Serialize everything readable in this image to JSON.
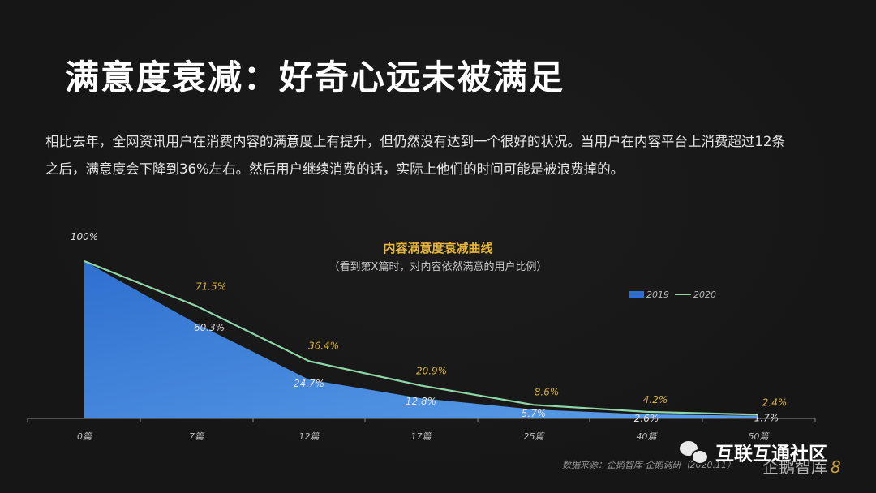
{
  "page": {
    "title": "满意度衰减：好奇心远未被满足",
    "description_line1": "相比去年，全网资讯用户在消费内容的满意度上有提升，但仍然没有达到一个很好的状况。当用户在内容平台上消费超过12条",
    "description_line2": "之后，满意度会下降到36%左右。然后用户继续消费的话，实际上他们的时间可能是被浪费掉的。",
    "source": "数据来源：企鹅智库·企鹅调研（2020.11）",
    "watermark_text": "互联互通社区",
    "brand_text": "企鹅智库",
    "brand_suffix": "8"
  },
  "chart_data": {
    "type": "area",
    "title": "内容满意度衰减曲线",
    "subtitle": "（看到第X篇时，对内容依然满意的用户比例）",
    "categories": [
      "0篇",
      "7篇",
      "12篇",
      "17篇",
      "25篇",
      "40篇",
      "50篇"
    ],
    "ylim": [
      0,
      100
    ],
    "legend_position": "top-right",
    "grid": false,
    "series": [
      {
        "name": "2019",
        "type": "area",
        "values": [
          100,
          60.3,
          24.7,
          12.8,
          5.7,
          2.6,
          1.7
        ],
        "labels": [
          "100%",
          "60.3%",
          "24.7%",
          "12.8%",
          "5.7%",
          "2.6%",
          "1.7%"
        ],
        "color_top": "#2f6fcf",
        "color_bottom": "#5b9ee8"
      },
      {
        "name": "2020",
        "type": "line",
        "values": [
          100,
          71.5,
          36.4,
          20.9,
          8.6,
          4.2,
          2.4
        ],
        "labels": [
          "",
          "71.5%",
          "36.4%",
          "20.9%",
          "8.6%",
          "4.2%",
          "2.4%"
        ],
        "color": "#8fd6a8",
        "label_color": "#d9b33a"
      }
    ]
  }
}
